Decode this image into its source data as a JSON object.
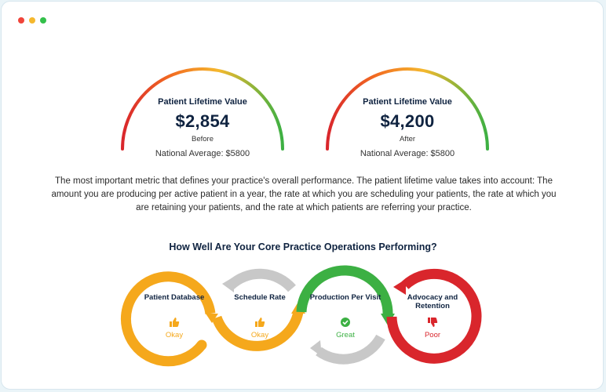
{
  "window": {
    "controls": [
      {
        "name": "close",
        "color": "#f0443a"
      },
      {
        "name": "minimize",
        "color": "#f5b82e"
      },
      {
        "name": "maximize",
        "color": "#33c04a"
      }
    ]
  },
  "gauges": [
    {
      "label": "Patient Lifetime Value",
      "value": "$2,854",
      "sublabel": "Before",
      "national_average": "National Average: $5800"
    },
    {
      "label": "Patient Lifetime Value",
      "value": "$4,200",
      "sublabel": "After",
      "national_average": "National Average: $5800"
    }
  ],
  "description": "The most important metric that defines your practice's overall performance. The patient lifetime value takes into account: The amount you are producing per active patient in a year, the rate at which you are scheduling your patients, the rate at which you are retaining your patients, and the rate at which patients are referring your practice.",
  "operations": {
    "heading": "How Well Are Your Core Practice Operations Performing?",
    "stages": [
      {
        "title": "Patient Database",
        "status": "Okay",
        "icon": "thumbs-up-icon",
        "color": "#f5a81c"
      },
      {
        "title": "Schedule Rate",
        "status": "Okay",
        "icon": "thumbs-up-icon",
        "color": "#f5a81c"
      },
      {
        "title": "Production Per Visit",
        "status": "Great",
        "icon": "check-badge-icon",
        "color": "#3cb043"
      },
      {
        "title": "Advocacy and Retention",
        "status": "Poor",
        "icon": "thumbs-down-icon",
        "color": "#d9262c"
      }
    ],
    "connector_color": "#c8c8c8"
  }
}
